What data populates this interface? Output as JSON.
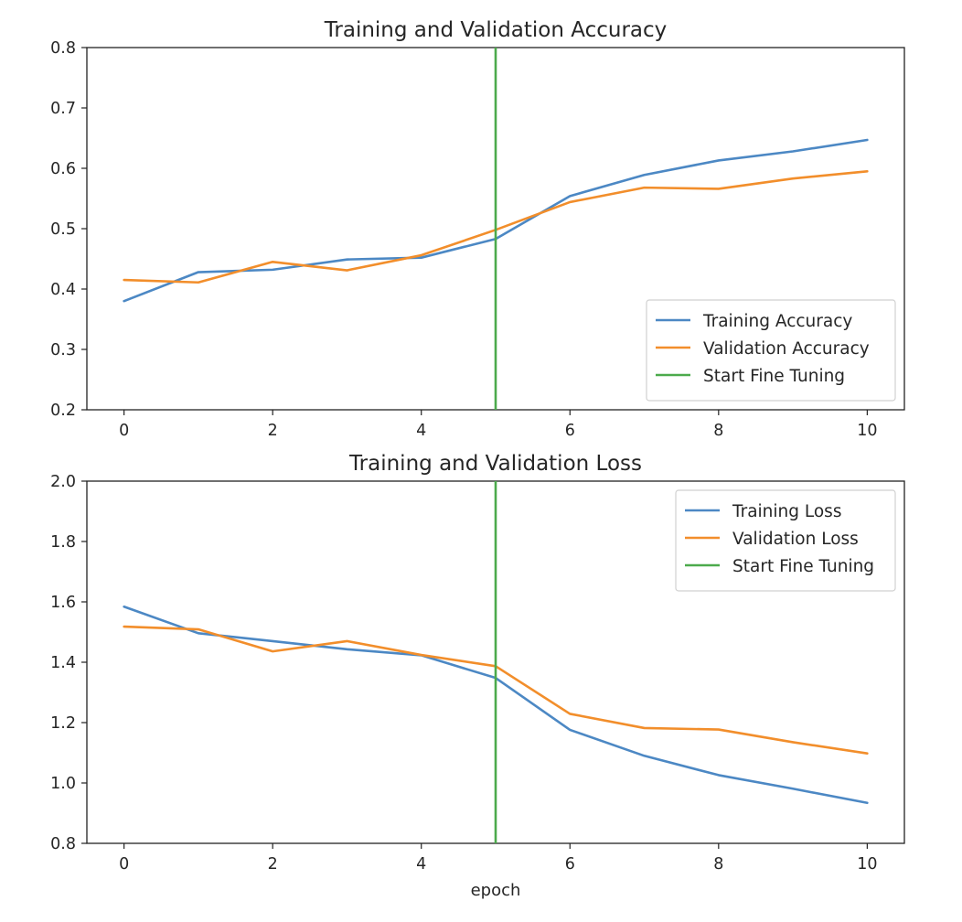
{
  "chart_data": [
    {
      "type": "line",
      "title": "Training and Validation Accuracy",
      "xlabel": "",
      "ylabel": "",
      "x": [
        0,
        1,
        2,
        3,
        4,
        5,
        6,
        7,
        8,
        9,
        10
      ],
      "xlim": [
        -0.5,
        10.5
      ],
      "ylim": [
        0.2,
        0.8
      ],
      "xticks": [
        0,
        2,
        4,
        6,
        8,
        10
      ],
      "xtick_labels": [
        "0",
        "2",
        "4",
        "6",
        "8",
        "10"
      ],
      "yticks": [
        0.2,
        0.3,
        0.4,
        0.5,
        0.6,
        0.7,
        0.8
      ],
      "ytick_labels": [
        "0.2",
        "0.3",
        "0.4",
        "0.5",
        "0.6",
        "0.7",
        "0.8"
      ],
      "grid": false,
      "legend_position": "lower-right",
      "series": [
        {
          "name": "Training Accuracy",
          "color": "#4c88c4",
          "values": [
            0.38,
            0.428,
            0.432,
            0.449,
            0.452,
            0.483,
            0.554,
            0.589,
            0.613,
            0.628,
            0.647
          ]
        },
        {
          "name": "Validation Accuracy",
          "color": "#f28e2b",
          "values": [
            0.415,
            0.411,
            0.445,
            0.431,
            0.456,
            0.498,
            0.544,
            0.568,
            0.566,
            0.583,
            0.595
          ]
        }
      ],
      "vline": {
        "name": "Start Fine Tuning",
        "color": "#4caa4c",
        "x": 5
      }
    },
    {
      "type": "line",
      "title": "Training and Validation Loss",
      "xlabel": "epoch",
      "ylabel": "",
      "x": [
        0,
        1,
        2,
        3,
        4,
        5,
        6,
        7,
        8,
        9,
        10
      ],
      "xlim": [
        -0.5,
        10.5
      ],
      "ylim": [
        0.8,
        2.0
      ],
      "xticks": [
        0,
        2,
        4,
        6,
        8,
        10
      ],
      "xtick_labels": [
        "0",
        "2",
        "4",
        "6",
        "8",
        "10"
      ],
      "yticks": [
        0.8,
        1.0,
        1.2,
        1.4,
        1.6,
        1.8,
        2.0
      ],
      "ytick_labels": [
        "0.8",
        "1.0",
        "1.2",
        "1.4",
        "1.6",
        "1.8",
        "2.0"
      ],
      "grid": false,
      "legend_position": "upper-right",
      "series": [
        {
          "name": "Training Loss",
          "color": "#4c88c4",
          "values": [
            1.584,
            1.496,
            1.47,
            1.443,
            1.423,
            1.348,
            1.176,
            1.09,
            1.026,
            0.981,
            0.934
          ]
        },
        {
          "name": "Validation Loss",
          "color": "#f28e2b",
          "values": [
            1.518,
            1.509,
            1.436,
            1.47,
            1.424,
            1.387,
            1.229,
            1.182,
            1.177,
            1.135,
            1.098
          ]
        }
      ],
      "vline": {
        "name": "Start Fine Tuning",
        "color": "#4caa4c",
        "x": 5
      }
    }
  ]
}
